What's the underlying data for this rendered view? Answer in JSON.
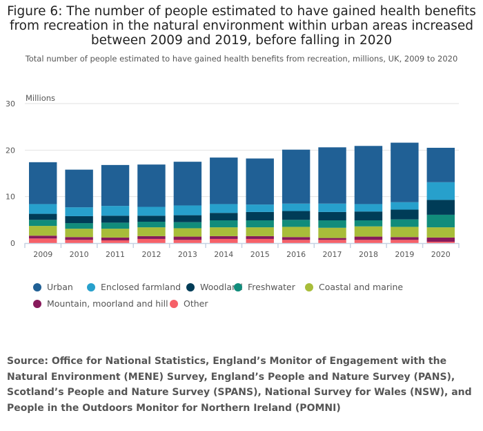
{
  "title": "Figure 6: The number of people estimated to have gained health benefits from recreation in the natural environment within urban areas increased between 2009 and 2019, before falling in 2020",
  "subtitle": "Total number of people estimated to have gained health benefits from recreation, millions, UK, 2009 to 2020",
  "source": "Source: Office for National Statistics, England’s Monitor of Engagement with the Natural Environment (MENE) Survey, England’s People and Nature Survey (PANS), Scotland’s People and Nature Survey (SPANS), National Survey for Wales (NSW), and People in the Outdoors Monitor for Northern Ireland (POMNI)",
  "chart_data": {
    "type": "bar",
    "stacked": true,
    "ylabel": "Millions",
    "ylim": [
      0,
      30
    ],
    "yticks": [
      0,
      10,
      20,
      30
    ],
    "grid": true,
    "legend_position": "bottom",
    "categories": [
      "2009",
      "2010",
      "2011",
      "2012",
      "2013",
      "2014",
      "2015",
      "2016",
      "2017",
      "2018",
      "2019",
      "2020"
    ],
    "series": [
      {
        "name": "Other",
        "color": "#f66068",
        "values": [
          1.0,
          0.7,
          0.6,
          0.9,
          0.7,
          0.9,
          0.9,
          0.7,
          0.7,
          0.7,
          0.7,
          0.3
        ]
      },
      {
        "name": "Mountain, moorland and hill",
        "color": "#871a5b",
        "values": [
          0.6,
          0.6,
          0.6,
          0.6,
          0.7,
          0.6,
          0.6,
          0.6,
          0.4,
          0.7,
          0.6,
          0.9
        ]
      },
      {
        "name": "Coastal and marine",
        "color": "#a8bd3a",
        "values": [
          2.1,
          1.8,
          1.9,
          1.9,
          1.8,
          1.9,
          1.9,
          2.2,
          2.2,
          2.2,
          2.2,
          2.2
        ]
      },
      {
        "name": "Freshwater",
        "color": "#118c7b",
        "values": [
          1.3,
          1.2,
          1.3,
          1.2,
          1.3,
          1.5,
          1.5,
          1.5,
          1.6,
          1.3,
          1.6,
          2.7
        ]
      },
      {
        "name": "Woodland",
        "color": "#003c57",
        "values": [
          1.3,
          1.5,
          1.5,
          1.3,
          1.5,
          1.6,
          1.8,
          1.9,
          1.8,
          1.9,
          2.1,
          3.2
        ]
      },
      {
        "name": "Enclosed farmland",
        "color": "#27a0cc",
        "values": [
          2.1,
          1.9,
          2.1,
          1.9,
          2.1,
          1.9,
          1.6,
          1.6,
          1.8,
          1.6,
          1.6,
          3.8
        ]
      },
      {
        "name": "Urban",
        "color": "#206095",
        "values": [
          9.0,
          8.1,
          8.8,
          9.1,
          9.4,
          10.0,
          9.9,
          11.6,
          12.1,
          12.5,
          12.8,
          7.4
        ]
      }
    ],
    "legend_order": [
      "Urban",
      "Enclosed farmland",
      "Woodland",
      "Freshwater",
      "Coastal and marine",
      "Mountain, moorland and hill",
      "Other"
    ]
  }
}
